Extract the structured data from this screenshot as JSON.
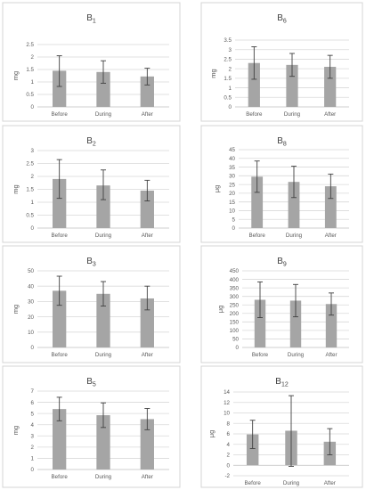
{
  "chart_data": [
    {
      "type": "bar",
      "title": "B",
      "title_subscript": "1",
      "ylabel": "mg",
      "categories": [
        "Before",
        "During",
        "After"
      ],
      "ylim": [
        0,
        2.5
      ],
      "yticks": [
        "0",
        "0.5",
        "1",
        "1.5",
        "2",
        "2.5"
      ],
      "tick_values": [
        0,
        0.5,
        1,
        1.5,
        2,
        2.5
      ],
      "series": [
        {
          "values": [
            1.45,
            1.4,
            1.22
          ],
          "error_low": [
            0.82,
            0.95,
            0.88
          ],
          "error_high": [
            2.05,
            1.85,
            1.55
          ]
        }
      ],
      "grid": true
    },
    {
      "type": "bar",
      "title": "B",
      "title_subscript": "6",
      "ylabel": "mg",
      "categories": [
        "Before",
        "During",
        "After"
      ],
      "ylim": [
        0,
        3.5
      ],
      "yticks": [
        "0",
        "0.5",
        "1",
        "1.5",
        "2",
        "2.5",
        "3",
        "3.5"
      ],
      "tick_values": [
        0,
        0.5,
        1,
        1.5,
        2,
        2.5,
        3,
        3.5
      ],
      "series": [
        {
          "values": [
            2.3,
            2.2,
            2.1
          ],
          "error_low": [
            1.45,
            1.6,
            1.5
          ],
          "error_high": [
            3.15,
            2.8,
            2.7
          ]
        }
      ],
      "grid": true
    },
    {
      "type": "bar",
      "title": "B",
      "title_subscript": "2",
      "ylabel": "mg",
      "categories": [
        "Before",
        "During",
        "After"
      ],
      "ylim": [
        0,
        3
      ],
      "yticks": [
        "0",
        "0.5",
        "1",
        "1.5",
        "2",
        "2.5",
        "3"
      ],
      "tick_values": [
        0,
        0.5,
        1,
        1.5,
        2,
        2.5,
        3
      ],
      "series": [
        {
          "values": [
            1.9,
            1.65,
            1.45
          ],
          "error_low": [
            1.15,
            1.1,
            1.05
          ],
          "error_high": [
            2.65,
            2.25,
            1.85
          ]
        }
      ],
      "grid": true
    },
    {
      "type": "bar",
      "title": "B",
      "title_subscript": "8",
      "ylabel": "μg",
      "categories": [
        "Before",
        "During",
        "After"
      ],
      "ylim": [
        0,
        45
      ],
      "yticks": [
        "0",
        "5",
        "10",
        "15",
        "20",
        "25",
        "30",
        "35",
        "40",
        "45"
      ],
      "tick_values": [
        0,
        5,
        10,
        15,
        20,
        25,
        30,
        35,
        40,
        45
      ],
      "series": [
        {
          "values": [
            29.5,
            26.5,
            24
          ],
          "error_low": [
            20.5,
            17.5,
            17
          ],
          "error_high": [
            38.5,
            35.5,
            31
          ]
        }
      ],
      "grid": true
    },
    {
      "type": "bar",
      "title": "B",
      "title_subscript": "3",
      "ylabel": "mg",
      "categories": [
        "Before",
        "During",
        "After"
      ],
      "ylim": [
        0,
        50
      ],
      "yticks": [
        "0",
        "10",
        "20",
        "30",
        "40",
        "50"
      ],
      "tick_values": [
        0,
        10,
        20,
        30,
        40,
        50
      ],
      "series": [
        {
          "values": [
            37,
            35,
            32
          ],
          "error_low": [
            27.5,
            27,
            24.5
          ],
          "error_high": [
            46.5,
            43,
            40
          ]
        }
      ],
      "grid": true
    },
    {
      "type": "bar",
      "title": "B",
      "title_subscript": "9",
      "ylabel": "μg",
      "categories": [
        "Before",
        "During",
        "After"
      ],
      "ylim": [
        0,
        450
      ],
      "yticks": [
        "0",
        "50",
        "100",
        "150",
        "200",
        "250",
        "300",
        "350",
        "400",
        "450"
      ],
      "tick_values": [
        0,
        50,
        100,
        150,
        200,
        250,
        300,
        350,
        400,
        450
      ],
      "series": [
        {
          "values": [
            280,
            275,
            255
          ],
          "error_low": [
            175,
            180,
            190
          ],
          "error_high": [
            385,
            370,
            320
          ]
        }
      ],
      "grid": true
    },
    {
      "type": "bar",
      "title": "B",
      "title_subscript": "5",
      "ylabel": "mg",
      "categories": [
        "Before",
        "During",
        "After"
      ],
      "ylim": [
        0,
        7
      ],
      "yticks": [
        "0",
        "1",
        "2",
        "3",
        "4",
        "5",
        "6",
        "7"
      ],
      "tick_values": [
        0,
        1,
        2,
        3,
        4,
        5,
        6,
        7
      ],
      "series": [
        {
          "values": [
            5.4,
            4.85,
            4.5
          ],
          "error_low": [
            4.35,
            3.75,
            3.55
          ],
          "error_high": [
            6.45,
            5.95,
            5.45
          ]
        }
      ],
      "grid": true
    },
    {
      "type": "bar",
      "title": "B",
      "title_subscript": "12",
      "ylabel": "μg",
      "categories": [
        "Before",
        "During",
        "After"
      ],
      "ylim": [
        -2,
        14
      ],
      "yticks": [
        "-2",
        "0",
        "2",
        "4",
        "6",
        "8",
        "10",
        "12",
        "14"
      ],
      "tick_values": [
        -2,
        0,
        2,
        4,
        6,
        8,
        10,
        12,
        14
      ],
      "series": [
        {
          "values": [
            5.9,
            6.6,
            4.5
          ],
          "error_low": [
            3.2,
            -0.2,
            2.0
          ],
          "error_high": [
            8.6,
            13.3,
            7.0
          ]
        }
      ],
      "grid": true
    }
  ]
}
